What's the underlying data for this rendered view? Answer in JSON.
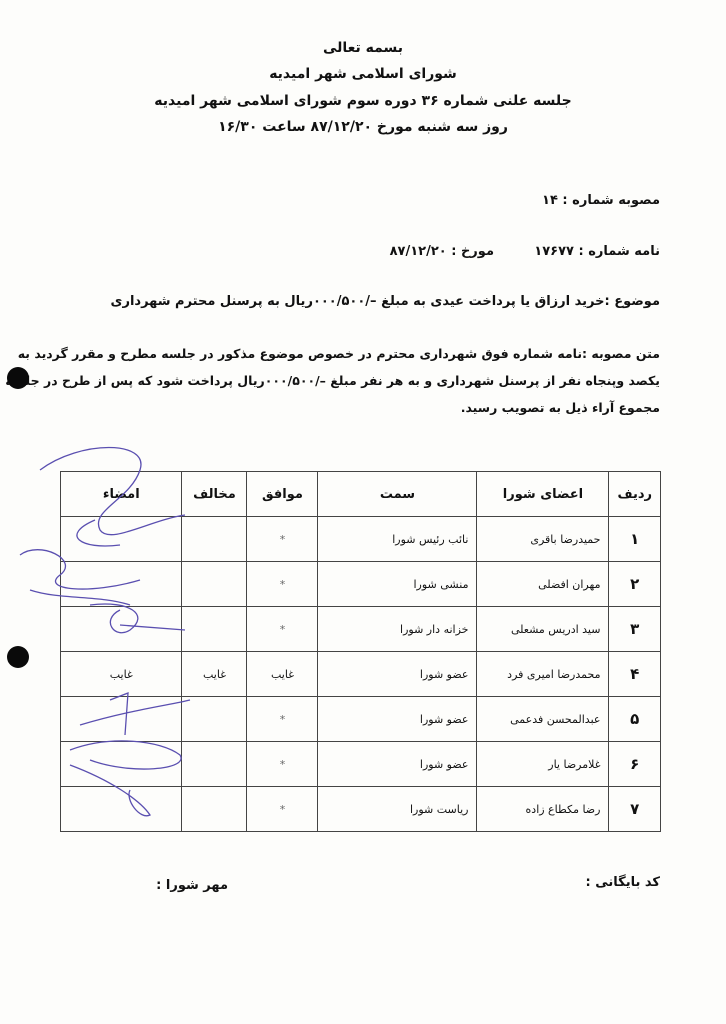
{
  "header": {
    "line1": "بسمه تعالی",
    "line2": "شورای اسلامی شهر امیدیه",
    "line3": "جلسه علنی شماره ۳۶ دوره سوم شورای اسلامی شهر امیدیه",
    "line4": "روز سه شنبه مورخ ۸۷/۱۲/۲۰ ساعت ۱۶/۳۰"
  },
  "resolution_number": "مصوبه شماره : ۱۴",
  "letter_number": "نامه شماره : ۱۷۶۷۷",
  "letter_date": "مورخ : ۸۷/۱۲/۲۰",
  "subject": "موضوع :خرید ارزاق یا پرداخت عیدی به مبلغ –/۰۰۰/۵۰۰ریال به پرسنل محترم شهرداری",
  "body": [
    "متن مصوبه :نامه شماره فوق شهرداری محترم در خصوص موضوع مذکور در جلسه مطرح و مقرر گردید به",
    "یکصد وپنجاه نفر از پرسنل شهرداری و به هر نفر مبلغ –/۰۰۰/۵۰۰ریال پرداخت شود که پس از طرح در جلسه با",
    "مجموع آراء ذیل به تصویب رسید."
  ],
  "table": {
    "headers": [
      "ردیف",
      "اعضای شورا",
      "سمت",
      "موافق",
      "مخالف",
      "امضاء"
    ],
    "rows": [
      {
        "no": "۱",
        "name": "حمیدرضا باقری",
        "position": "نائب رئیس شورا",
        "agree": "*",
        "disagree": "",
        "sign": ""
      },
      {
        "no": "۲",
        "name": "مهران افضلی",
        "position": "منشی شورا",
        "agree": "*",
        "disagree": "",
        "sign": ""
      },
      {
        "no": "۳",
        "name": "سید ادریس مشعلی",
        "position": "خزانه دار شورا",
        "agree": "*",
        "disagree": "",
        "sign": ""
      },
      {
        "no": "۴",
        "name": "محمدرضا امیری فرد",
        "position": "عضو شورا",
        "agree": "غایب",
        "disagree": "غایب",
        "sign": "غایب"
      },
      {
        "no": "۵",
        "name": "عبدالمحسن فدعمی",
        "position": "عضو شورا",
        "agree": "*",
        "disagree": "",
        "sign": ""
      },
      {
        "no": "۶",
        "name": "غلامرضا یار",
        "position": "عضو شورا",
        "agree": "*",
        "disagree": "",
        "sign": ""
      },
      {
        "no": "۷",
        "name": "رضا مکطاع زاده",
        "position": "ریاست شورا",
        "agree": "*",
        "disagree": "",
        "sign": ""
      }
    ]
  },
  "footer": {
    "archive_code": "کد بایگانی :",
    "council_seal": "مهر شورا :"
  },
  "colors": {
    "signature_ink": "#5a4fb0"
  }
}
